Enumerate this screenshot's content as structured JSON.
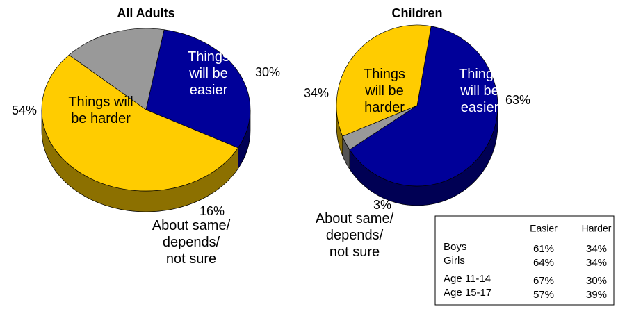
{
  "chart_data": [
    {
      "type": "pie",
      "title": "All Adults",
      "categories": [
        [
          "Things",
          "will be",
          "easier"
        ],
        [
          "Things will",
          "be harder"
        ],
        [
          "About same/",
          "depends/",
          "not sure"
        ]
      ],
      "values": [
        30,
        54,
        16
      ],
      "value_labels": [
        "30%",
        "54%",
        "16%"
      ],
      "colors": [
        "#000099",
        "#ffcc00",
        "#999999"
      ]
    },
    {
      "type": "pie",
      "title": "Children",
      "categories": [
        [
          "Things",
          "will be",
          "easier"
        ],
        [
          "About same/",
          "depends/",
          "not sure"
        ],
        [
          "Things",
          "will be",
          "harder"
        ]
      ],
      "values": [
        63,
        3,
        34
      ],
      "value_labels": [
        "63%",
        "3%",
        "34%"
      ],
      "colors": [
        "#000099",
        "#999999",
        "#ffcc00"
      ]
    }
  ],
  "table": {
    "columns": [
      "Easier",
      "Harder"
    ],
    "rows": [
      {
        "label": "Boys",
        "values": [
          "61%",
          "34%"
        ]
      },
      {
        "label": "Girls",
        "values": [
          "64%",
          "34%"
        ]
      },
      {
        "label": "Age 11-14",
        "values": [
          "67%",
          "30%"
        ]
      },
      {
        "label": "Age 15-17",
        "values": [
          "57%",
          "39%"
        ]
      }
    ]
  }
}
